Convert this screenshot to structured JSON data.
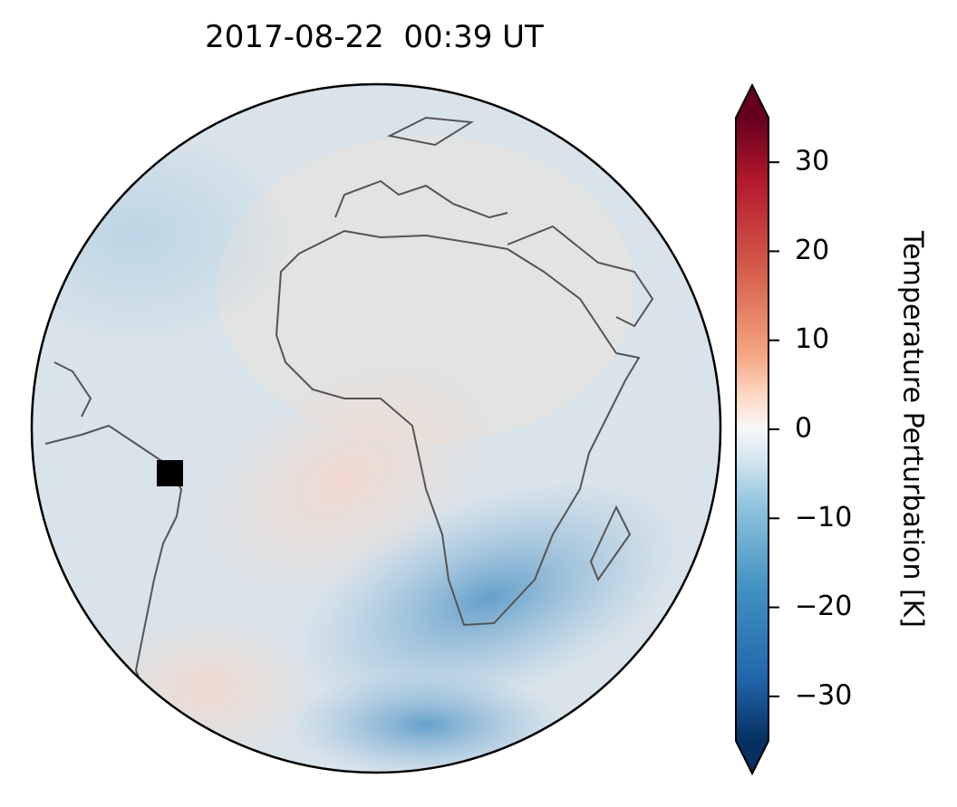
{
  "title": "2017-08-22  00:39 UT",
  "colorbar": {
    "label": "Temperature Perturbation [K]",
    "lim": [
      -35,
      35
    ],
    "ticks": [
      {
        "value": -30,
        "label": "−30"
      },
      {
        "value": -20,
        "label": "−20"
      },
      {
        "value": -10,
        "label": "−10"
      },
      0,
      10,
      20,
      30
    ]
  }
}
